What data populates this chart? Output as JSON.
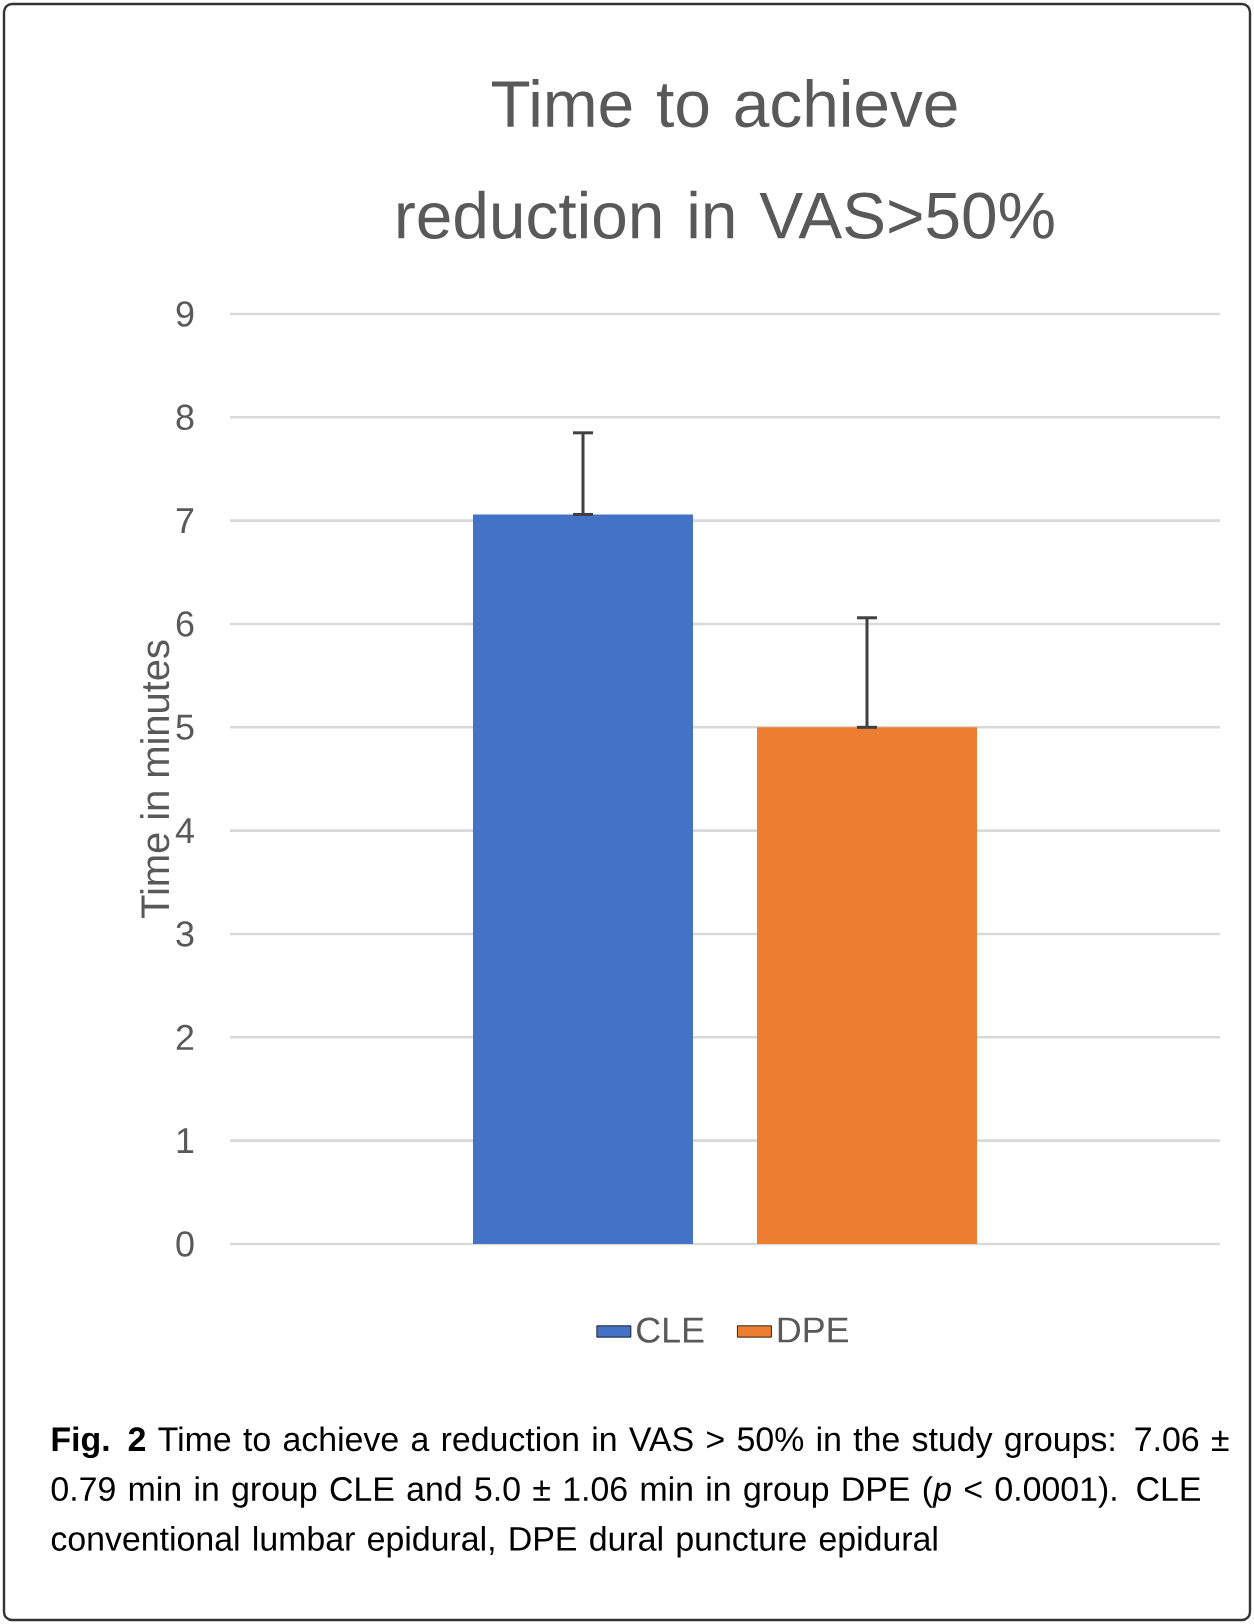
{
  "chart_data": {
    "type": "bar",
    "title": "Time to achieve reduction in VAS>50%",
    "ylabel": "Time in minutes",
    "categories": [
      null
    ],
    "series": [
      {
        "name": "CLE",
        "color": "#4472c4",
        "values": [
          7.06
        ],
        "errors": [
          [
            7.06,
            7.85
          ]
        ]
      },
      {
        "name": "DPE",
        "color": "#ed7d31",
        "values": [
          5.0
        ],
        "errors": [
          [
            5.0,
            6.06
          ]
        ]
      }
    ],
    "ylim": [
      0,
      9
    ],
    "yticks": [
      0,
      1,
      2,
      3,
      4,
      5,
      6,
      7,
      8,
      9
    ],
    "grid": "y",
    "legend": "bottom",
    "annotations": [
      "**Fig. 2** Time to achieve a reduction in VAS > 50% in the study groups: 7.06 ± 0.79 min in group CLE and 5.0 ± 1.06 min in group DPE (*p* < 0.0001). CLE conventional lumbar epidural, DPE dural puncture epidural"
    ]
  }
}
